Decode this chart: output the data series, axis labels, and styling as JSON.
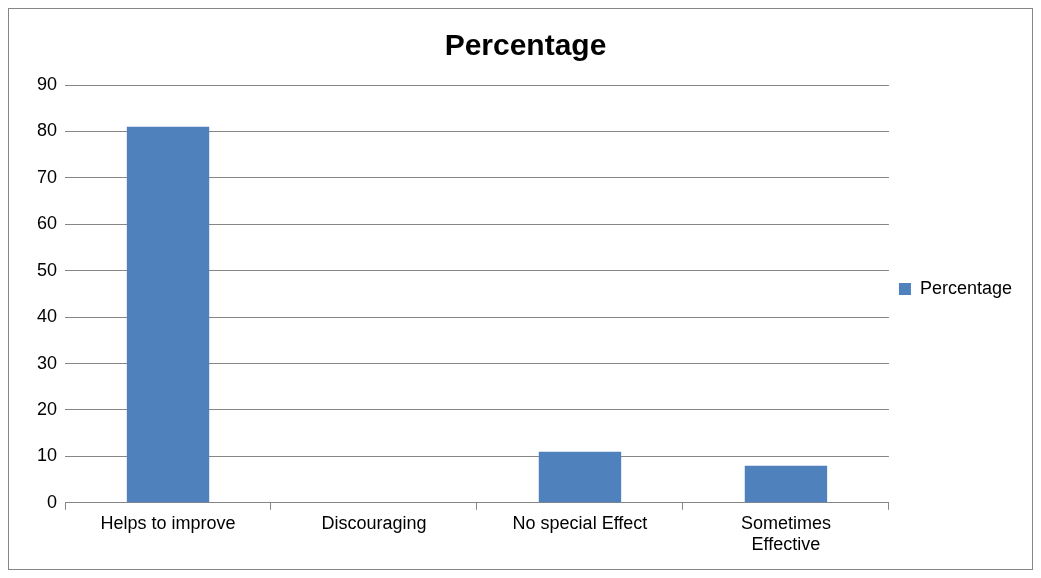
{
  "chart_data": {
    "type": "bar",
    "title": "Percentage",
    "categories": [
      "Helps to improve",
      "Discouraging",
      "No special Effect",
      "Sometimes Effective"
    ],
    "series": [
      {
        "name": "Percentage",
        "color": "#4f81bd",
        "values": [
          81,
          0,
          11,
          8
        ]
      }
    ],
    "ylim": [
      0,
      90
    ],
    "yticks": [
      0,
      10,
      20,
      30,
      40,
      50,
      60,
      70,
      80,
      90
    ],
    "grid": "y",
    "legend": "right"
  }
}
